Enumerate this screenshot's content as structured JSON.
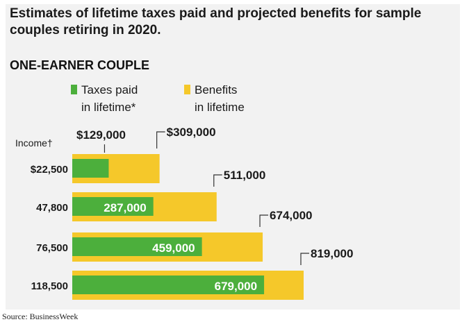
{
  "title": "Estimates of lifetime taxes paid and projected benefits for sample couples retiring in 2020.",
  "subtitle": "ONE-EARNER COUPLE",
  "source": "Source: BusinessWeek",
  "colors": {
    "taxes": "#4caf3c",
    "benefits": "#f5c82a",
    "background": "#f2f2f2"
  },
  "chart_data": {
    "type": "bar",
    "orientation": "horizontal",
    "category_label": "Income†",
    "categories": [
      "$22,500",
      "47,800",
      "76,500",
      "118,500"
    ],
    "series": [
      {
        "name": "Taxes paid in lifetime*",
        "values": [
          129000,
          287000,
          459000,
          679000
        ],
        "labels": [
          "$129,000",
          "287,000",
          "459,000",
          "679,000"
        ]
      },
      {
        "name": "Benefits in lifetime",
        "values": [
          309000,
          511000,
          674000,
          819000
        ],
        "labels": [
          "$309,000",
          "511,000",
          "674,000",
          "819,000"
        ]
      }
    ],
    "overlay": true,
    "legend_position": "top"
  }
}
